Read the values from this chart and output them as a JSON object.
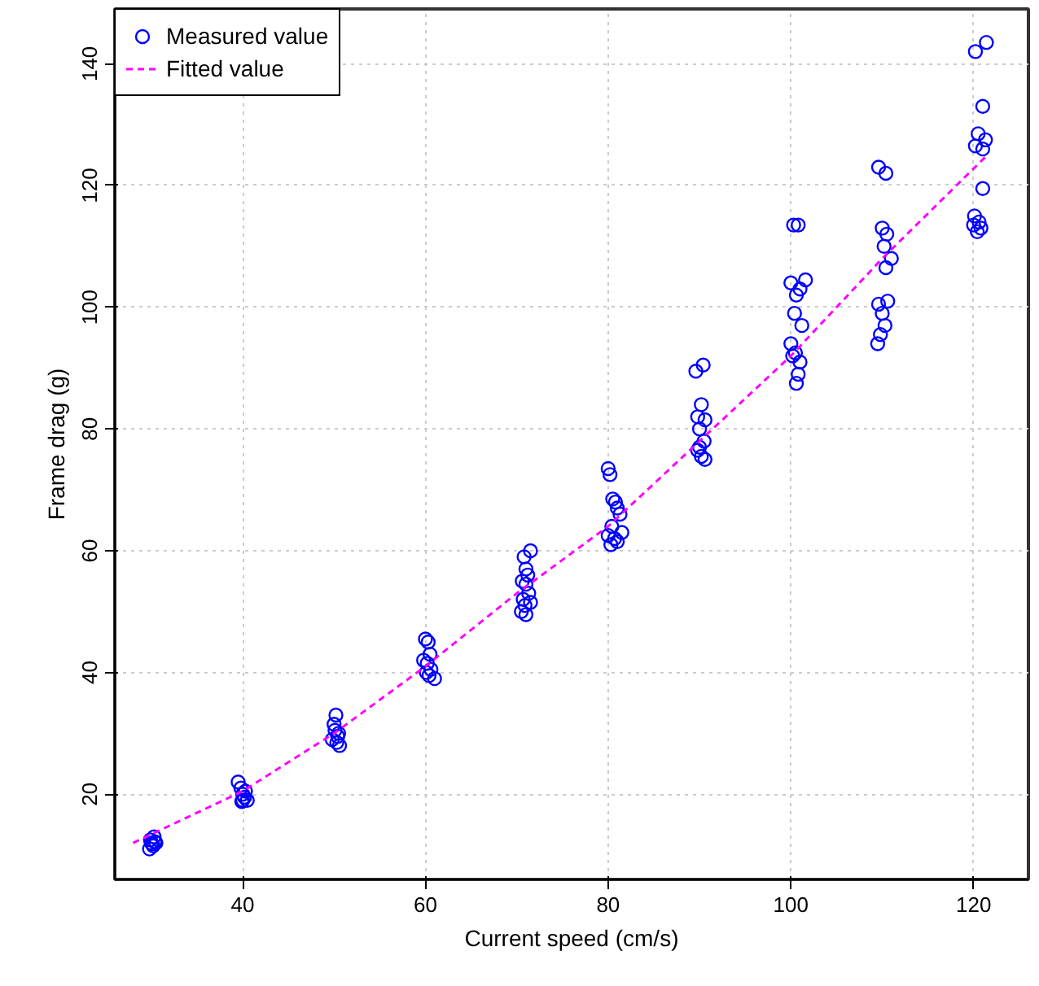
{
  "chart_data": {
    "type": "scatter",
    "xlabel": "Current speed (cm/s)",
    "ylabel": "Frame drag (g)",
    "xlim": [
      26,
      126
    ],
    "ylim": [
      6,
      149
    ],
    "xticks": [
      40,
      60,
      80,
      100,
      120
    ],
    "yticks": [
      20,
      40,
      60,
      80,
      100,
      120,
      140
    ],
    "grid": true,
    "legend": "top left",
    "series": [
      {
        "name": "Measured value",
        "marker": "circle",
        "color": "#0000ff",
        "x": [
          29.8,
          30.2,
          30.5,
          30,
          29.9,
          30.3,
          30.1,
          30.4,
          39.5,
          39.8,
          40,
          40.2,
          40.5,
          40,
          40.3,
          39.9,
          50.2,
          50,
          50.5,
          49.8,
          50.3,
          50.6,
          50.1,
          50.4,
          60,
          60.3,
          60.5,
          59.8,
          60.2,
          60.6,
          60.4,
          61,
          60.1,
          71.5,
          70.8,
          71,
          71.2,
          70.6,
          71,
          71.3,
          70.7,
          71.5,
          70.9,
          70.5,
          71,
          80,
          80.2,
          80.5,
          80.8,
          81,
          81.3,
          80.4,
          80,
          80.7,
          81,
          80.3,
          81.5,
          89.6,
          90.4,
          90.2,
          89.8,
          90.6,
          90,
          90.5,
          89.8,
          90.2,
          90.6,
          90,
          100.3,
          100.8,
          100,
          101,
          101.6,
          100.6,
          100.4,
          101.2,
          100,
          100.5,
          101,
          100.8,
          100.6,
          100.2,
          109.6,
          110.4,
          110,
          110.5,
          110.2,
          111,
          110.4,
          109.6,
          110.6,
          110,
          110.3,
          109.8,
          109.5,
          120.2,
          121.4,
          121,
          120.5,
          121.3,
          120.2,
          121,
          121,
          120.1,
          120.6,
          120,
          120.8,
          120.4
        ],
        "values": [
          11,
          11.5,
          12,
          12,
          12.5,
          13,
          11.8,
          12.2,
          22,
          21,
          20,
          19.5,
          19,
          19,
          20.5,
          18.8,
          33,
          31.5,
          30,
          29,
          28.5,
          28,
          30.5,
          29.5,
          45.5,
          45,
          43,
          42,
          41.5,
          40.5,
          39.5,
          39,
          40,
          60,
          59,
          57,
          56,
          55,
          54.5,
          53,
          52,
          51.5,
          51,
          50,
          49.5,
          73.5,
          72.5,
          68.5,
          68,
          67,
          66,
          64,
          62.5,
          62,
          61.5,
          61,
          63,
          89.5,
          90.5,
          84,
          82,
          81.5,
          80,
          78,
          76.5,
          75.5,
          75,
          77,
          113.5,
          113.5,
          104,
          103,
          104.5,
          102,
          99,
          97,
          94,
          92.5,
          91,
          89,
          87.5,
          92,
          123,
          122,
          113,
          112,
          110,
          108,
          106.5,
          100.5,
          101,
          99,
          97,
          95.5,
          94,
          142,
          143.5,
          133,
          128.5,
          127.5,
          126.5,
          126,
          119.5,
          115,
          114,
          113.5,
          113,
          112.4
        ]
      },
      {
        "name": "Fitted value",
        "type": "line",
        "line_style": "dashed",
        "color": "#ff00ff",
        "x": [
          28,
          40,
          50,
          60,
          70,
          80,
          90,
          100,
          110,
          121.5
        ],
        "values": [
          12,
          20.5,
          30,
          41,
          53,
          64,
          78,
          92,
          108,
          125
        ]
      }
    ]
  }
}
